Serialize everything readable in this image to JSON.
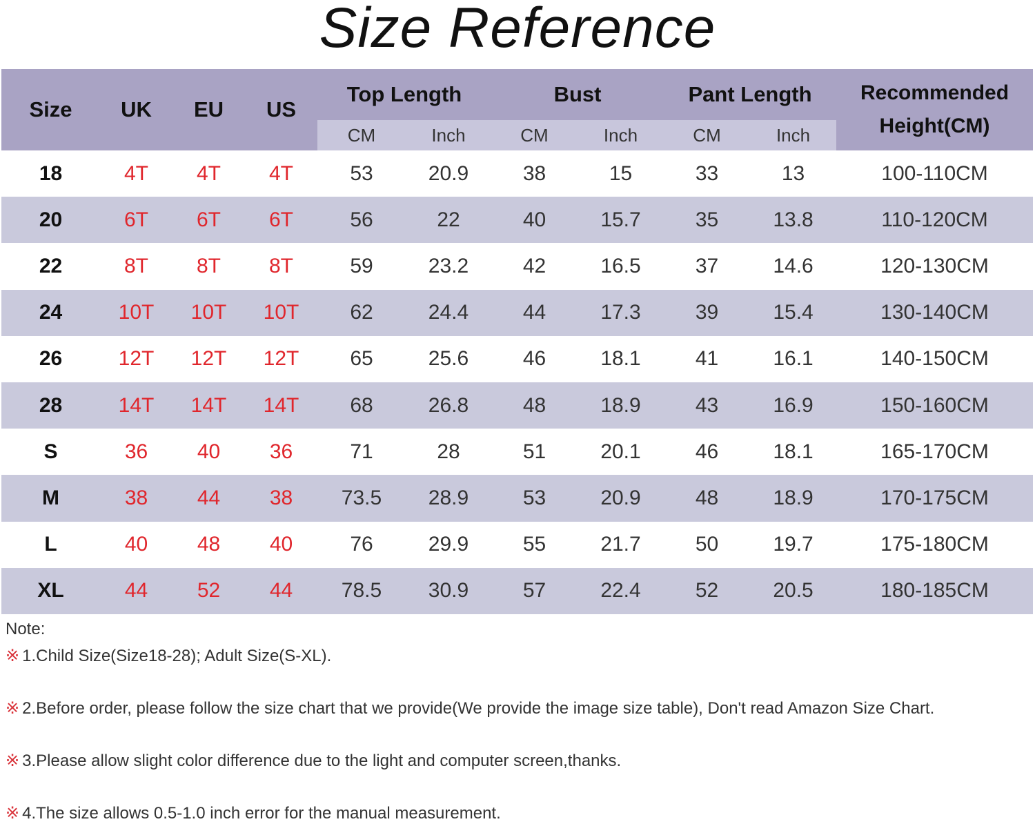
{
  "title": "Size Reference",
  "headers": {
    "size": "Size",
    "uk": "UK",
    "eu": "EU",
    "us": "US",
    "top_length": "Top Length",
    "bust": "Bust",
    "pant_length": "Pant Length",
    "recommended": "Recommended",
    "height": "Height(CM)",
    "cm": "CM",
    "inch": "Inch"
  },
  "colors": {
    "header": "#a9a3c4",
    "subheader": "#c8c6dc",
    "stripe": "#c9c9dc",
    "equivalent_size_text": "#e0262c"
  },
  "rows": [
    [
      "18",
      "4T",
      "4T",
      "4T",
      "53",
      "20.9",
      "38",
      "15",
      "33",
      "13",
      "100-110CM"
    ],
    [
      "20",
      "6T",
      "6T",
      "6T",
      "56",
      "22",
      "40",
      "15.7",
      "35",
      "13.8",
      "110-120CM"
    ],
    [
      "22",
      "8T",
      "8T",
      "8T",
      "59",
      "23.2",
      "42",
      "16.5",
      "37",
      "14.6",
      "120-130CM"
    ],
    [
      "24",
      "10T",
      "10T",
      "10T",
      "62",
      "24.4",
      "44",
      "17.3",
      "39",
      "15.4",
      "130-140CM"
    ],
    [
      "26",
      "12T",
      "12T",
      "12T",
      "65",
      "25.6",
      "46",
      "18.1",
      "41",
      "16.1",
      "140-150CM"
    ],
    [
      "28",
      "14T",
      "14T",
      "14T",
      "68",
      "26.8",
      "48",
      "18.9",
      "43",
      "16.9",
      "150-160CM"
    ],
    [
      "S",
      "36",
      "40",
      "36",
      "71",
      "28",
      "51",
      "20.1",
      "46",
      "18.1",
      "165-170CM"
    ],
    [
      "M",
      "38",
      "44",
      "38",
      "73.5",
      "28.9",
      "53",
      "20.9",
      "48",
      "18.9",
      "170-175CM"
    ],
    [
      "L",
      "40",
      "48",
      "40",
      "76",
      "29.9",
      "55",
      "21.7",
      "50",
      "19.7",
      "175-180CM"
    ],
    [
      "XL",
      "44",
      "52",
      "44",
      "78.5",
      "30.9",
      "57",
      "22.4",
      "52",
      "20.5",
      "180-185CM"
    ]
  ],
  "notes": {
    "label": "Note:",
    "mark": "※",
    "items": [
      "1.Child Size(Size18-28); Adult Size(S-XL).",
      "2.Before order, please follow the size chart that we provide(We provide the image size table), Don't read Amazon Size Chart.",
      "3.Please allow slight color difference due to the light and computer screen,thanks.",
      "4.The size allows 0.5-1.0 inch error for the manual measurement."
    ]
  }
}
